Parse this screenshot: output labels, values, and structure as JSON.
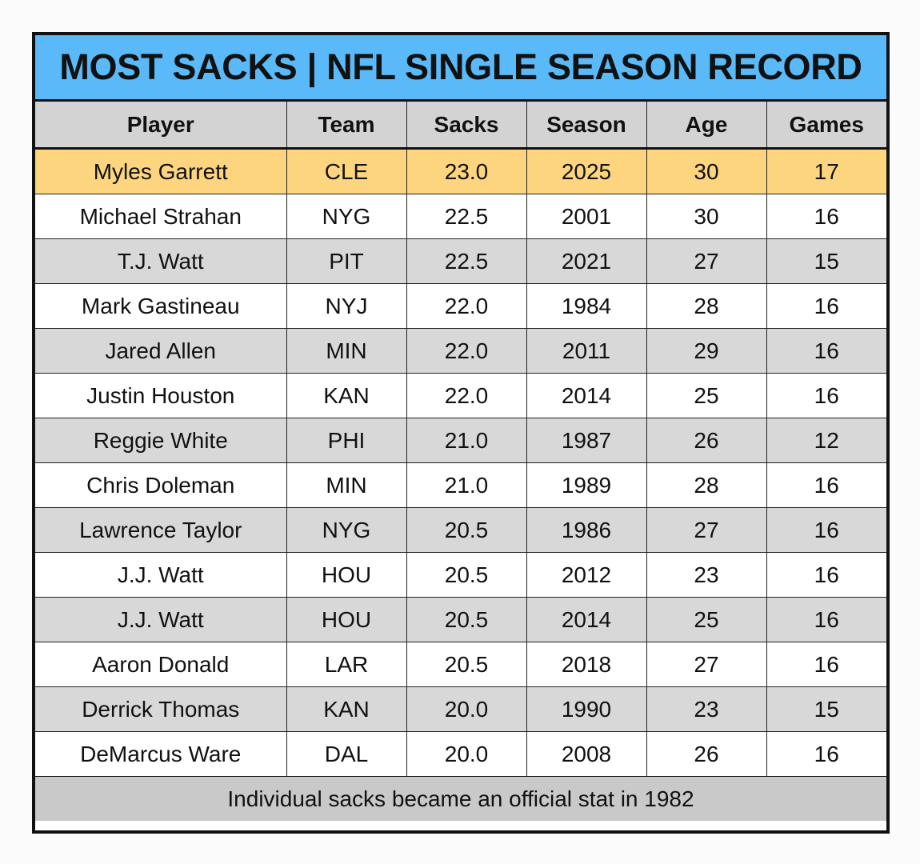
{
  "chart_data": {
    "type": "table",
    "title": "MOST SACKS | NFL SINGLE SEASON RECORD",
    "columns": [
      "Player",
      "Team",
      "Sacks",
      "Season",
      "Age",
      "Games"
    ],
    "rows": [
      [
        "Myles Garrett",
        "CLE",
        "23.0",
        "2025",
        "30",
        "17"
      ],
      [
        "Michael Strahan",
        "NYG",
        "22.5",
        "2001",
        "30",
        "16"
      ],
      [
        "T.J. Watt",
        "PIT",
        "22.5",
        "2021",
        "27",
        "15"
      ],
      [
        "Mark Gastineau",
        "NYJ",
        "22.0",
        "1984",
        "28",
        "16"
      ],
      [
        "Jared Allen",
        "MIN",
        "22.0",
        "2011",
        "29",
        "16"
      ],
      [
        "Justin Houston",
        "KAN",
        "22.0",
        "2014",
        "25",
        "16"
      ],
      [
        "Reggie White",
        "PHI",
        "21.0",
        "1987",
        "26",
        "12"
      ],
      [
        "Chris Doleman",
        "MIN",
        "21.0",
        "1989",
        "28",
        "16"
      ],
      [
        "Lawrence Taylor",
        "NYG",
        "20.5",
        "1986",
        "27",
        "16"
      ],
      [
        "J.J. Watt",
        "HOU",
        "20.5",
        "2012",
        "23",
        "16"
      ],
      [
        "J.J. Watt",
        "HOU",
        "20.5",
        "2014",
        "25",
        "16"
      ],
      [
        "Aaron Donald",
        "LAR",
        "20.5",
        "2018",
        "27",
        "16"
      ],
      [
        "Derrick Thomas",
        "KAN",
        "20.0",
        "1990",
        "23",
        "15"
      ],
      [
        "DeMarcus Ware",
        "DAL",
        "20.0",
        "2008",
        "26",
        "16"
      ]
    ],
    "highlighted_row": 0,
    "footer": "Individual sacks became an official stat in 1982"
  },
  "colors": {
    "title_background": "#5ab9f8",
    "header_background": "#d3d3d3",
    "highlight_row": "#fdd57e",
    "striped_row": "#d8d8d8",
    "footer_background": "#c9c9c9"
  }
}
